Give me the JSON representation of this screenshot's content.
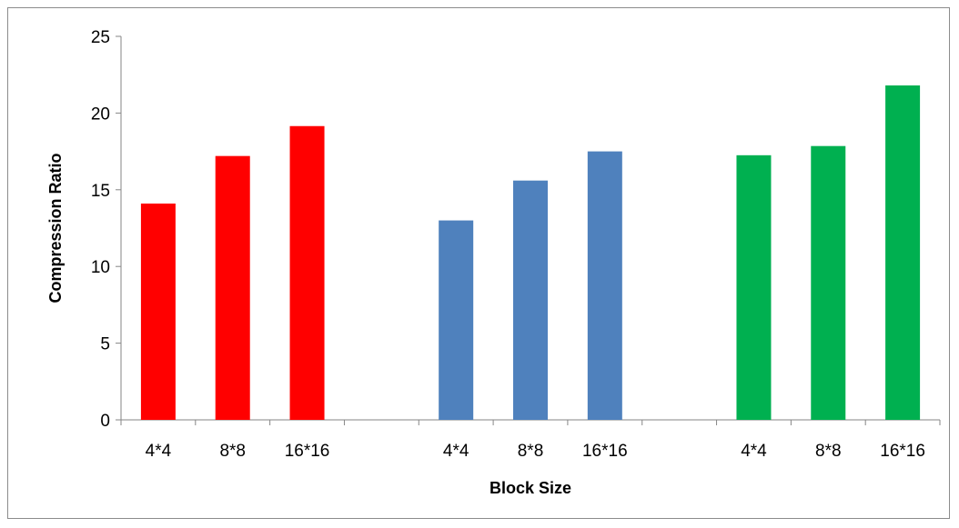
{
  "chart_data": {
    "type": "bar",
    "title": "",
    "xlabel": "Block Size",
    "ylabel": "Compression Ratio",
    "ylim": [
      0,
      25
    ],
    "yticks": [
      0,
      5,
      10,
      15,
      20,
      25
    ],
    "grid": false,
    "legend": "none",
    "categories": [
      "4*4",
      "8*8",
      "16*16",
      "",
      "4*4",
      "8*8",
      "16*16",
      "",
      "4*4",
      "8*8",
      "16*16"
    ],
    "values": [
      14.1,
      17.2,
      19.15,
      null,
      13.0,
      15.6,
      17.5,
      null,
      17.25,
      17.85,
      21.8
    ],
    "colors": [
      "#ff0000",
      "#ff0000",
      "#ff0000",
      null,
      "#4f81bd",
      "#4f81bd",
      "#4f81bd",
      null,
      "#00b050",
      "#00b050",
      "#00b050"
    ]
  }
}
